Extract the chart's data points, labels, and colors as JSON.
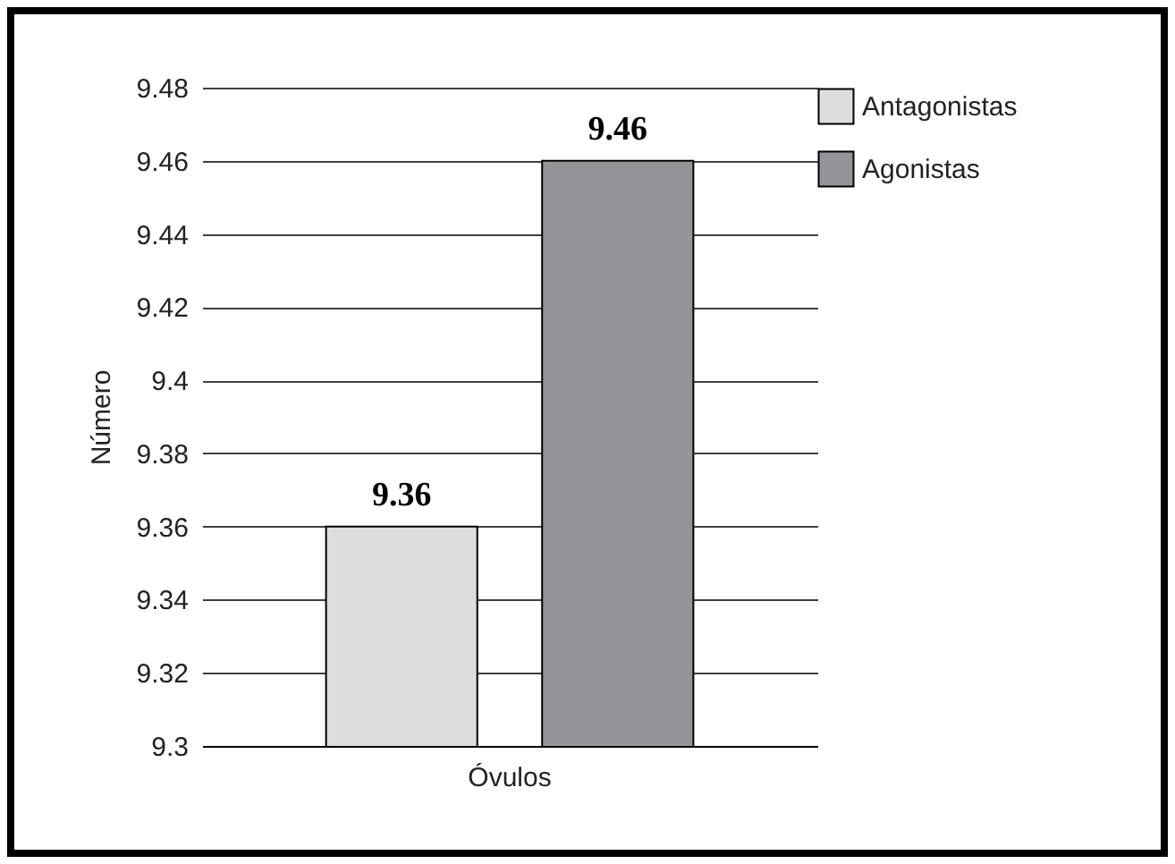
{
  "chart_data": {
    "type": "bar",
    "ylabel": "Número",
    "categories": [
      "Óvulos"
    ],
    "series": [
      {
        "name": "Antagonistas",
        "color": "#dcdddf",
        "values": [
          9.36
        ]
      },
      {
        "name": "Agonistas",
        "color": "#939598",
        "values": [
          9.46
        ]
      }
    ],
    "ylim": [
      9.3,
      9.48
    ],
    "yticks": [
      9.3,
      9.32,
      9.34,
      9.36,
      9.38,
      9.4,
      9.42,
      9.44,
      9.46,
      9.48
    ],
    "grid": "y",
    "legend": "right",
    "data_labels": true
  }
}
